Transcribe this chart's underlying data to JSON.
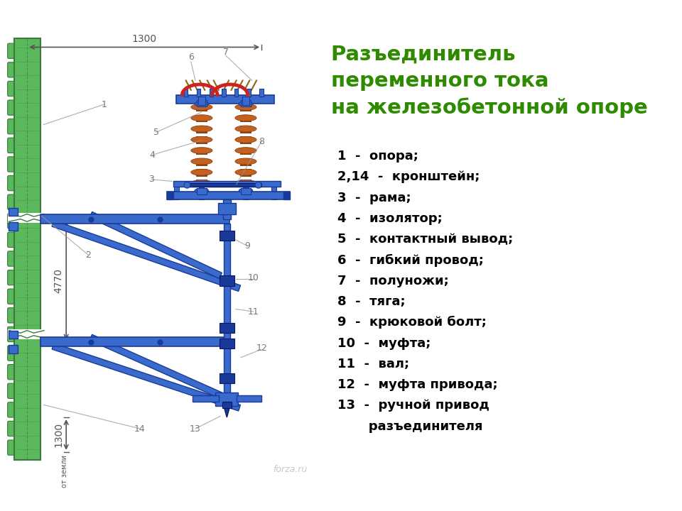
{
  "title_line1": "Разъединитель",
  "title_line2": "переменного тока",
  "title_line3": "на железобетонной опоре",
  "title_color": "#2e8b00",
  "legend_items": [
    "1  -  опора;",
    "2,14  -  кронштейн;",
    "3  -  рама;",
    "4  -  изолятор;",
    "5  -  контактный вывод;",
    "6  -  гибкий провод;",
    "7  -  полуножи;",
    "8  -  тяга;",
    "9  -  крюковой болт;",
    "10  -  муфта;",
    "11  -  вал;",
    "12  -  муфта привода;",
    "13  -  ручной привод",
    "       разъединителя"
  ],
  "legend_color": "#000000",
  "bg_color": "#ffffff",
  "dim_color": "#555555",
  "pole_color": "#5cb85c",
  "pole_dark": "#3a7a3a",
  "blue_color": "#3a6bcc",
  "blue_dark": "#1a3a99",
  "brown_color": "#8b4513",
  "brown_light": "#c46020",
  "red_color": "#cc2222",
  "label_color": "#777777",
  "watermark": "forza.ru"
}
